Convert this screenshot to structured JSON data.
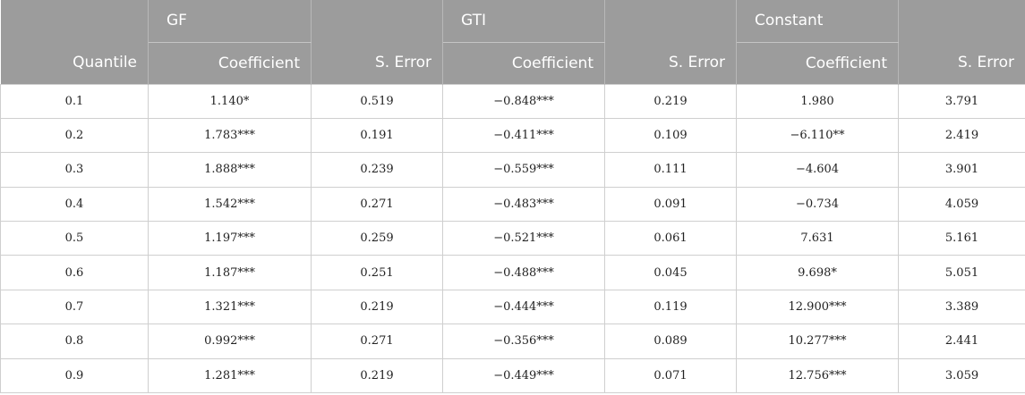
{
  "header": {
    "groups": [
      "GF",
      "GTI",
      "Constant"
    ],
    "columns": [
      "Quantile",
      "Coefficient",
      "S. Error",
      "Coefficient",
      "S. Error",
      "Coefficient",
      "S. Error"
    ]
  },
  "table": {
    "rows": [
      [
        "0.1",
        "1.140*",
        "0.519",
        "−0.848***",
        "0.219",
        "1.980",
        "3.791"
      ],
      [
        "0.2",
        "1.783***",
        "0.191",
        "−0.411***",
        "0.109",
        "−6.110**",
        "2.419"
      ],
      [
        "0.3",
        "1.888***",
        "0.239",
        "−0.559***",
        "0.111",
        "−4.604",
        "3.901"
      ],
      [
        "0.4",
        "1.542***",
        "0.271",
        "−0.483***",
        "0.091",
        "−0.734",
        "4.059"
      ],
      [
        "0.5",
        "1.197***",
        "0.259",
        "−0.521***",
        "0.061",
        "7.631",
        "5.161"
      ],
      [
        "0.6",
        "1.187***",
        "0.251",
        "−0.488***",
        "0.045",
        "9.698*",
        "5.051"
      ],
      [
        "0.7",
        "1.321***",
        "0.219",
        "−0.444***",
        "0.119",
        "12.900***",
        "3.389"
      ],
      [
        "0.8",
        "0.992***",
        "0.271",
        "−0.356***",
        "0.089",
        "10.277***",
        "2.441"
      ],
      [
        "0.9",
        "1.281***",
        "0.219",
        "−0.449***",
        "0.071",
        "12.756***",
        "3.059"
      ]
    ]
  }
}
